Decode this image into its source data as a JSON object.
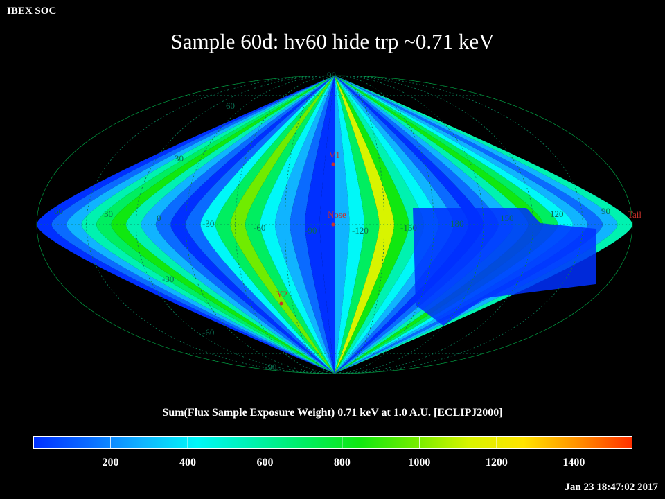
{
  "header": {
    "organization": "IBEX SOC",
    "title": "Sample 60d: hv60 hide trp ~0.71 keV"
  },
  "map": {
    "projection": "Mollweide",
    "grid_longitude_labels": [
      "60",
      "30",
      "0",
      "-30",
      "-60",
      "-90",
      "-120",
      "-150",
      "180",
      "150",
      "120",
      "90"
    ],
    "grid_latitude_labels_upper": [
      "90",
      "60",
      "30"
    ],
    "grid_latitude_labels_lower": [
      "-30",
      "-60",
      "-90"
    ],
    "markers": [
      {
        "label": "V1",
        "color": "#c8322a"
      },
      {
        "label": "Nose",
        "color": "#c8322a"
      },
      {
        "label": "Y2",
        "color": "#c8322a"
      },
      {
        "label": "Tail",
        "color": "#c8322a"
      }
    ]
  },
  "colorbar": {
    "label": "Sum(Flux Sample Exposure Weight)  0.71 keV at 1.0 A.U. [ECLIPJ2000]",
    "min": 0,
    "max": 1550,
    "ticks": [
      "200",
      "400",
      "600",
      "800",
      "1000",
      "1200",
      "1400"
    ],
    "tick_values": [
      200,
      400,
      600,
      800,
      1000,
      1200,
      1400
    ],
    "colors": [
      "#0030ff",
      "#0a6bff",
      "#10b4ff",
      "#00f8f8",
      "#00f2b0",
      "#00ee60",
      "#10e810",
      "#70ec00",
      "#d8f400",
      "#ffe400",
      "#ff9000",
      "#ff3000"
    ]
  },
  "footer": {
    "timestamp": "Jan 23 18:47:02 2017"
  }
}
